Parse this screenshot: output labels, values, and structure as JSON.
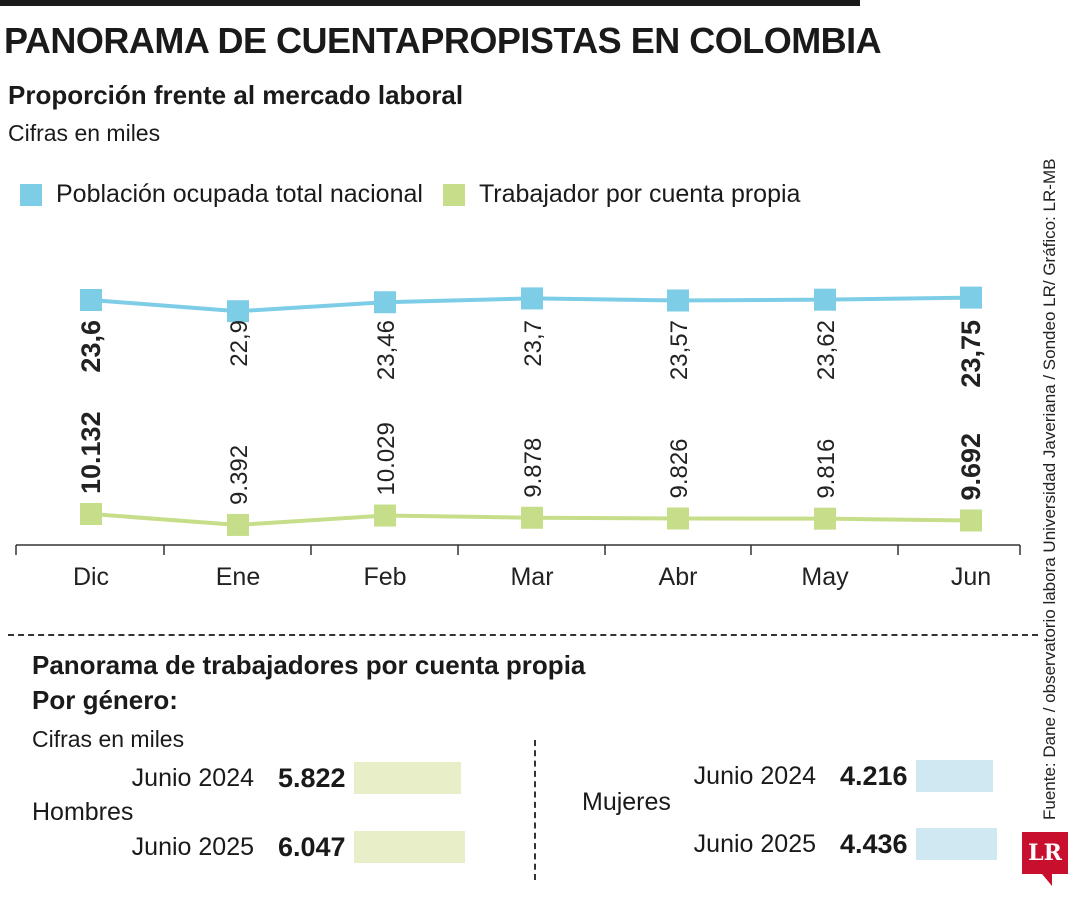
{
  "header": {
    "title": "PANORAMA DE CUENTAPROPISTAS EN COLOMBIA",
    "subtitle": "Proporción frente al mercado laboral",
    "units": "Cifras en miles"
  },
  "colors": {
    "series1": "#7ecde6",
    "series2": "#c6de8a",
    "bar_men": "#e8efc8",
    "bar_women": "#cfe8f1"
  },
  "chart_data": {
    "type": "line",
    "categories": [
      "Dic",
      "Ene",
      "Feb",
      "Mar",
      "Abr",
      "May",
      "Jun"
    ],
    "series": [
      {
        "name": "Población ocupada total nacional",
        "values": [
          23.6,
          22.9,
          23.46,
          23.7,
          23.57,
          23.62,
          23.75
        ],
        "labels": [
          "23,6",
          "22,9",
          "23,46",
          "23,7",
          "23,57",
          "23,62",
          "23,75"
        ]
      },
      {
        "name": "Trabajador por cuenta propia",
        "values": [
          10.132,
          9.392,
          10.029,
          9.878,
          9.826,
          9.816,
          9.692
        ],
        "labels": [
          "10.132",
          "9.392",
          "10.029",
          "9.878",
          "9.826",
          "9.816",
          "9.692"
        ]
      }
    ],
    "legend_position": "top-left"
  },
  "source": "Fuente: Dane / observatorio labora Universidad Javeriana / Sondeo LR/ Gráfico: LR-MB",
  "gender": {
    "title": "Panorama de trabajadores por cuenta propia",
    "subtitle": "Por género:",
    "units": "Cifras en miles",
    "men": {
      "label": "Hombres",
      "rows": [
        {
          "period": "Junio 2024",
          "value_label": "5.822",
          "value": 5822
        },
        {
          "period": "Junio 2025",
          "value_label": "6.047",
          "value": 6047
        }
      ]
    },
    "women": {
      "label": "Mujeres",
      "rows": [
        {
          "period": "Junio 2024",
          "value_label": "4.216",
          "value": 4216
        },
        {
          "period": "Junio 2025",
          "value_label": "4.436",
          "value": 4436
        }
      ]
    }
  },
  "logo": {
    "text": "LR"
  }
}
